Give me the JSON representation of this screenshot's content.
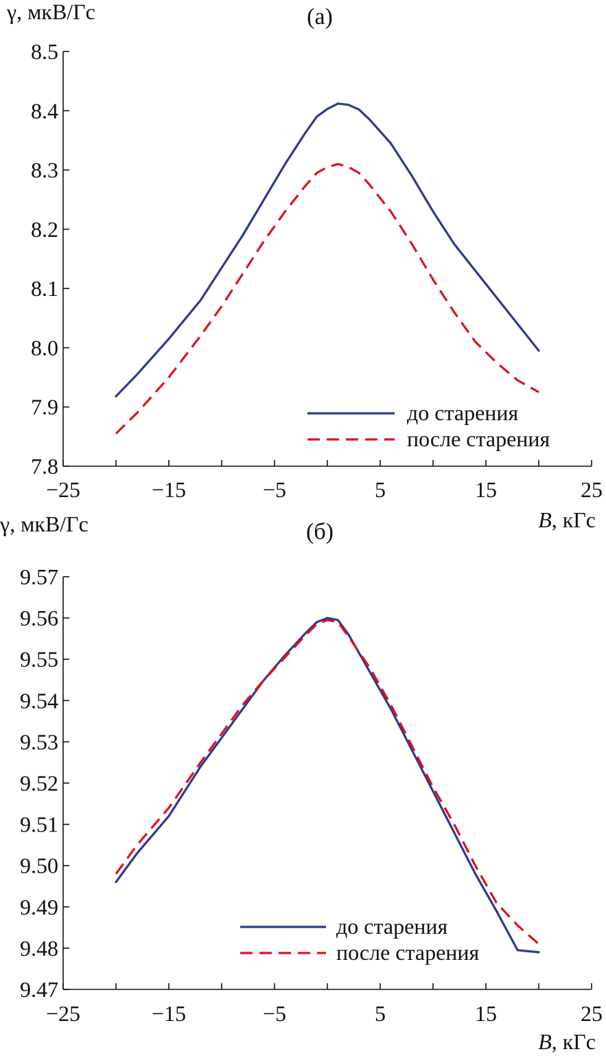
{
  "chart_data": [
    {
      "type": "line",
      "title": "(а)",
      "xlabel_var": "B",
      "xlabel_unit": ", кГс",
      "ylabel": "γ, мкВ/Гс",
      "xlim": [
        -25,
        25
      ],
      "ylim": [
        7.8,
        8.5
      ],
      "x_ticks": [
        "−25",
        "−15",
        "−5",
        "5",
        "15",
        "25"
      ],
      "y_ticks": [
        "7.8",
        "7.9",
        "8.0",
        "8.1",
        "8.2",
        "8.3",
        "8.4",
        "8.5"
      ],
      "legend_position": "bottom-right",
      "series": [
        {
          "name": "до старения",
          "style": "solid",
          "color": "#2e3a8c",
          "points": [
            [
              -20,
              7.918
            ],
            [
              -18,
              7.955
            ],
            [
              -15,
              8.015
            ],
            [
              -12,
              8.08
            ],
            [
              -10,
              8.135
            ],
            [
              -8,
              8.19
            ],
            [
              -6,
              8.25
            ],
            [
              -4,
              8.31
            ],
            [
              -2,
              8.365
            ],
            [
              -1,
              8.39
            ],
            [
              0,
              8.403
            ],
            [
              1,
              8.412
            ],
            [
              2,
              8.41
            ],
            [
              3,
              8.402
            ],
            [
              4,
              8.385
            ],
            [
              6,
              8.345
            ],
            [
              8,
              8.29
            ],
            [
              10,
              8.23
            ],
            [
              12,
              8.175
            ],
            [
              14,
              8.13
            ],
            [
              16,
              8.085
            ],
            [
              18,
              8.04
            ],
            [
              20,
              7.995
            ]
          ]
        },
        {
          "name": "после старения",
          "style": "dashed",
          "color": "#e01020",
          "points": [
            [
              -20,
              7.855
            ],
            [
              -18,
              7.89
            ],
            [
              -15,
              7.95
            ],
            [
              -12,
              8.02
            ],
            [
              -10,
              8.07
            ],
            [
              -8,
              8.125
            ],
            [
              -6,
              8.18
            ],
            [
              -4,
              8.23
            ],
            [
              -2,
              8.275
            ],
            [
              -1,
              8.295
            ],
            [
              0,
              8.305
            ],
            [
              1,
              8.31
            ],
            [
              2,
              8.305
            ],
            [
              3,
              8.295
            ],
            [
              4,
              8.275
            ],
            [
              6,
              8.23
            ],
            [
              8,
              8.175
            ],
            [
              10,
              8.115
            ],
            [
              12,
              8.06
            ],
            [
              14,
              8.01
            ],
            [
              16,
              7.975
            ],
            [
              18,
              7.945
            ],
            [
              20,
              7.925
            ]
          ]
        }
      ]
    },
    {
      "type": "line",
      "title": "(б)",
      "xlabel_var": "B",
      "xlabel_unit": ", кГс",
      "ylabel": "γ, мкВ/Гс",
      "xlim": [
        -25,
        25
      ],
      "ylim": [
        9.47,
        9.57
      ],
      "x_ticks": [
        "−25",
        "−15",
        "−5",
        "5",
        "15",
        "25"
      ],
      "y_ticks": [
        "9.47",
        "9.48",
        "9.49",
        "9.50",
        "9.51",
        "9.52",
        "9.53",
        "9.54",
        "9.55",
        "9.56",
        "9.57"
      ],
      "legend_position": "bottom-center",
      "series": [
        {
          "name": "до старения",
          "style": "solid",
          "color": "#2e3a8c",
          "points": [
            [
              -20,
              9.496
            ],
            [
              -18,
              9.503
            ],
            [
              -15,
              9.512
            ],
            [
              -12,
              9.524
            ],
            [
              -10,
              9.531
            ],
            [
              -8,
              9.538
            ],
            [
              -6,
              9.545
            ],
            [
              -4,
              9.551
            ],
            [
              -2,
              9.5565
            ],
            [
              -1,
              9.559
            ],
            [
              0,
              9.56
            ],
            [
              1,
              9.5595
            ],
            [
              2,
              9.556
            ],
            [
              4,
              9.547
            ],
            [
              6,
              9.538
            ],
            [
              8,
              9.528
            ],
            [
              10,
              9.518
            ],
            [
              12,
              9.508
            ],
            [
              14,
              9.498
            ],
            [
              16,
              9.489
            ],
            [
              18,
              9.4795
            ],
            [
              20,
              9.479
            ]
          ]
        },
        {
          "name": "после старения",
          "style": "dashed",
          "color": "#e01020",
          "points": [
            [
              -20,
              9.498
            ],
            [
              -18,
              9.505
            ],
            [
              -15,
              9.514
            ],
            [
              -12,
              9.525
            ],
            [
              -10,
              9.532
            ],
            [
              -8,
              9.539
            ],
            [
              -6,
              9.545
            ],
            [
              -4,
              9.5505
            ],
            [
              -2,
              9.556
            ],
            [
              -1,
              9.5585
            ],
            [
              0,
              9.5595
            ],
            [
              1,
              9.559
            ],
            [
              2,
              9.5555
            ],
            [
              4,
              9.548
            ],
            [
              6,
              9.539
            ],
            [
              8,
              9.529
            ],
            [
              10,
              9.519
            ],
            [
              12,
              9.51
            ],
            [
              14,
              9.5
            ],
            [
              16,
              9.491
            ],
            [
              18,
              9.4855
            ],
            [
              20,
              9.481
            ]
          ]
        }
      ]
    }
  ]
}
